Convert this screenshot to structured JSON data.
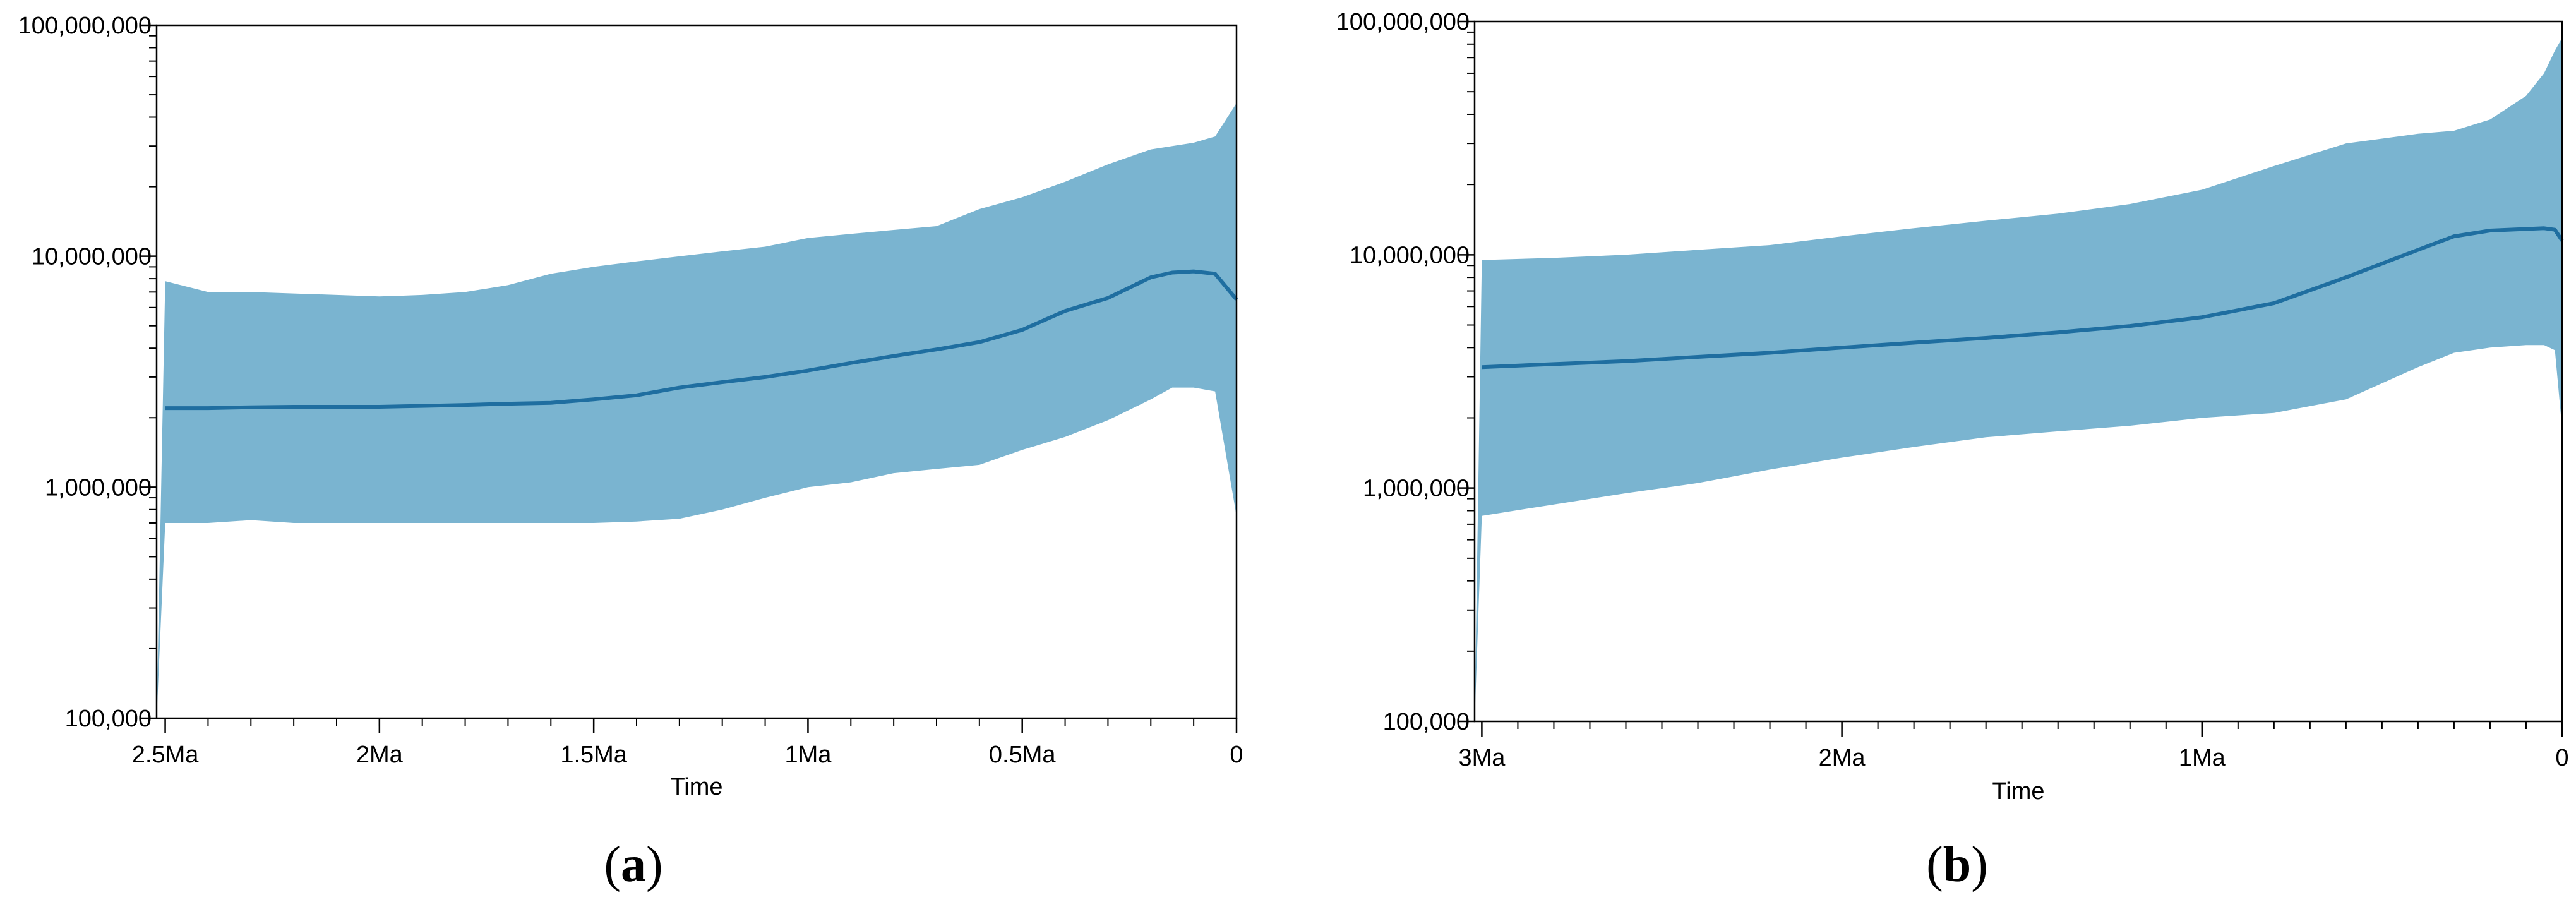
{
  "chart_data": [
    {
      "type": "area",
      "panel_label": "a",
      "xlabel": "Time",
      "ylabel": "",
      "y_scale": "log",
      "ylim": [
        100000,
        100000000
      ],
      "xlim_ma": [
        2.52,
        0
      ],
      "x_ticks": [
        {
          "value": 2.5,
          "label": "2.5Ma"
        },
        {
          "value": 2.0,
          "label": "2Ma"
        },
        {
          "value": 1.5,
          "label": "1.5Ma"
        },
        {
          "value": 1.0,
          "label": "1Ma"
        },
        {
          "value": 0.5,
          "label": "0.5Ma"
        },
        {
          "value": 0,
          "label": "0"
        }
      ],
      "y_ticks": [
        {
          "value": 100000,
          "label": "100,000"
        },
        {
          "value": 1000000,
          "label": "1,000,000"
        },
        {
          "value": 10000000,
          "label": "10,000,000"
        },
        {
          "value": 100000000,
          "label": "100,000,000"
        }
      ],
      "x": [
        2.52,
        2.5,
        2.4,
        2.3,
        2.2,
        2.1,
        2.0,
        1.9,
        1.8,
        1.7,
        1.6,
        1.5,
        1.4,
        1.3,
        1.2,
        1.1,
        1.0,
        0.9,
        0.8,
        0.7,
        0.6,
        0.5,
        0.4,
        0.3,
        0.2,
        0.15,
        0.1,
        0.05,
        0.0
      ],
      "median": [
        2200000,
        2200000,
        2200000,
        2220000,
        2230000,
        2230000,
        2230000,
        2250000,
        2270000,
        2300000,
        2320000,
        2400000,
        2500000,
        2700000,
        2850000,
        3000000,
        3200000,
        3450000,
        3700000,
        3950000,
        4250000,
        4800000,
        5800000,
        6600000,
        8100000,
        8500000,
        8600000,
        8400000,
        6500000
      ],
      "upper_95hpd": [
        100000,
        7800000,
        7000000,
        7000000,
        6900000,
        6800000,
        6700000,
        6800000,
        7000000,
        7500000,
        8400000,
        9000000,
        9500000,
        10000000,
        10500000,
        11000000,
        12000000,
        12500000,
        13000000,
        13500000,
        16000000,
        18000000,
        21000000,
        25000000,
        29000000,
        30000000,
        31000000,
        33000000,
        46000000
      ],
      "lower_95hpd": [
        100000,
        700000,
        700000,
        720000,
        700000,
        700000,
        700000,
        700000,
        700000,
        700000,
        700000,
        700000,
        710000,
        730000,
        800000,
        900000,
        1000000,
        1050000,
        1150000,
        1200000,
        1250000,
        1450000,
        1650000,
        1950000,
        2400000,
        2700000,
        2700000,
        2600000,
        750000
      ]
    },
    {
      "type": "area",
      "panel_label": "b",
      "xlabel": "Time",
      "ylabel": "",
      "y_scale": "log",
      "ylim": [
        100000,
        100000000
      ],
      "xlim_ma": [
        3.02,
        0
      ],
      "x_ticks": [
        {
          "value": 3.0,
          "label": "3Ma"
        },
        {
          "value": 2.0,
          "label": "2Ma"
        },
        {
          "value": 1.0,
          "label": "1Ma"
        },
        {
          "value": 0,
          "label": "0"
        }
      ],
      "y_ticks": [
        {
          "value": 100000,
          "label": "100,000"
        },
        {
          "value": 1000000,
          "label": "1,000,000"
        },
        {
          "value": 10000000,
          "label": "10,000,000"
        },
        {
          "value": 100000000,
          "label": "100,000,000"
        }
      ],
      "x": [
        3.02,
        3.0,
        2.8,
        2.6,
        2.4,
        2.2,
        2.0,
        1.8,
        1.6,
        1.4,
        1.2,
        1.0,
        0.8,
        0.6,
        0.4,
        0.3,
        0.2,
        0.1,
        0.05,
        0.02,
        0.0
      ],
      "median": [
        3300000,
        3300000,
        3400000,
        3500000,
        3650000,
        3800000,
        4000000,
        4200000,
        4400000,
        4650000,
        4950000,
        5400000,
        6200000,
        8000000,
        10500000,
        12000000,
        12700000,
        12900000,
        13000000,
        12800000,
        11500000
      ],
      "upper_95hpd": [
        100000,
        9500000,
        9700000,
        10000000,
        10500000,
        11000000,
        12000000,
        13000000,
        14000000,
        15000000,
        16500000,
        19000000,
        24000000,
        30000000,
        33000000,
        34000000,
        38000000,
        48000000,
        60000000,
        75000000,
        85000000
      ],
      "lower_95hpd": [
        100000,
        760000,
        850000,
        950000,
        1050000,
        1200000,
        1350000,
        1500000,
        1650000,
        1750000,
        1850000,
        2000000,
        2100000,
        2400000,
        3300000,
        3800000,
        4000000,
        4100000,
        4100000,
        3900000,
        1800000
      ]
    }
  ],
  "colors": {
    "band": "#7ab4d0",
    "median_line": "#1f6ea0",
    "axis": "#000000"
  }
}
